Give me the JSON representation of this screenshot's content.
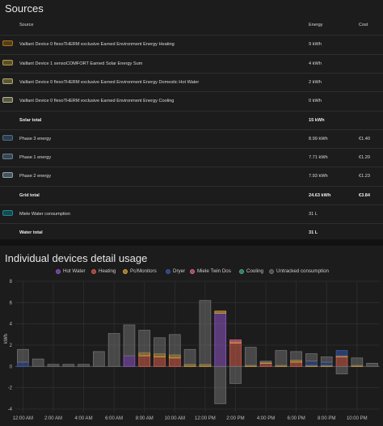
{
  "sources": {
    "title": "Sources",
    "headers": {
      "source": "Source",
      "energy": "Energy",
      "cost": "Cost"
    },
    "rows": [
      {
        "type": "item",
        "label": "Vaillant Device 0 flexoTHERM exclusive Earned Environment Energy Heating",
        "energy": "9 kWh",
        "cost": "",
        "color": "#a8741a"
      },
      {
        "type": "item",
        "label": "Vaillant Device 1 sensoCOMFORT Earned Solar Energy Sum",
        "energy": "4 kWh",
        "cost": "",
        "color": "#b89a40"
      },
      {
        "type": "item",
        "label": "Vaillant Device 0 flexoTHERM exclusive Earned Environment Energy Domestic Hot Water",
        "energy": "2 kWh",
        "cost": "",
        "color": "#b5ad68"
      },
      {
        "type": "item",
        "label": "Vaillant Device 0 flexoTHERM exclusive Earned Environment Energy Cooling",
        "energy": "0 kWh",
        "cost": "",
        "color": "#b7b486"
      },
      {
        "type": "total",
        "label": "Solar total",
        "energy": "15 kWh",
        "cost": ""
      },
      {
        "type": "item",
        "label": "Phase 3 energy",
        "energy": "8.99 kWh",
        "cost": "€1.40",
        "color": "#4b6e92"
      },
      {
        "type": "item",
        "label": "Phase 1 energy",
        "energy": "7.71 kWh",
        "cost": "€1.20",
        "color": "#62849f"
      },
      {
        "type": "item",
        "label": "Phase 2 energy",
        "energy": "7.93 kWh",
        "cost": "€1.23",
        "color": "#8aa8b5"
      },
      {
        "type": "total",
        "label": "Grid total",
        "energy": "24.63 kWh",
        "cost": "€3.84"
      },
      {
        "type": "item",
        "label": "Miele Water consumption",
        "energy": "31 L",
        "cost": "",
        "color": "#1a8a95"
      },
      {
        "type": "total",
        "label": "Water total",
        "energy": "31 L",
        "cost": ""
      }
    ]
  },
  "usage": {
    "title": "Individual devices detail usage",
    "legend": [
      {
        "label": "Hot Water",
        "color": "#8e56c2"
      },
      {
        "label": "Heating",
        "color": "#d35e4c"
      },
      {
        "label": "Pc/Monitors",
        "color": "#d6a53f"
      },
      {
        "label": "Dryer",
        "color": "#3c5aa8"
      },
      {
        "label": "Miele Twin Dos",
        "color": "#d8688a"
      },
      {
        "label": "Cooling",
        "color": "#4aa58e"
      },
      {
        "label": "Untracked consumption",
        "color": "#6e6e6e"
      }
    ]
  },
  "chart_data": {
    "type": "bar",
    "stacked": true,
    "ylabel": "kWh",
    "ylim": [
      -4,
      8
    ],
    "yticks": [
      -4,
      -2,
      0,
      2,
      4,
      6,
      8
    ],
    "grid": true,
    "legend_position": "top",
    "x_tick_labels": [
      "12:00 AM",
      "2:00 AM",
      "4:00 AM",
      "6:00 AM",
      "8:00 AM",
      "10:00 AM",
      "12:00 PM",
      "2:00 PM",
      "4:00 PM",
      "6:00 PM",
      "8:00 PM",
      "10:00 PM"
    ],
    "categories": [
      "0",
      "1",
      "2",
      "3",
      "4",
      "5",
      "6",
      "7",
      "8",
      "9",
      "10",
      "11",
      "12",
      "13",
      "14",
      "15",
      "16",
      "17",
      "18",
      "19",
      "20",
      "21",
      "22",
      "23"
    ],
    "series": [
      {
        "name": "Hot Water",
        "color": "#8e56c2",
        "values": [
          0,
          0,
          0,
          0,
          0,
          0,
          0,
          1,
          0,
          0,
          0,
          0,
          0,
          5,
          0,
          0,
          0,
          0,
          0,
          0,
          0,
          0,
          0,
          0
        ]
      },
      {
        "name": "Heating",
        "color": "#d35e4c",
        "values": [
          0,
          0,
          0,
          0,
          0,
          0,
          0,
          0,
          1,
          0.9,
          0.8,
          0,
          0,
          0,
          2.2,
          0,
          0.3,
          0,
          0.4,
          0,
          0,
          0.9,
          0,
          0
        ]
      },
      {
        "name": "Pc/Monitors",
        "color": "#d6a53f",
        "values": [
          0,
          0,
          0,
          0,
          0,
          0,
          0,
          0,
          0.3,
          0.3,
          0.3,
          0.2,
          0.2,
          0.2,
          0.1,
          0.1,
          0.1,
          0.1,
          0.2,
          0.1,
          0.1,
          0.1,
          0.1,
          0
        ]
      },
      {
        "name": "Dryer",
        "color": "#3c5aa8",
        "values": [
          0.4,
          0,
          0,
          0,
          0,
          0,
          0,
          0,
          0,
          0,
          0,
          0,
          0,
          0,
          0,
          0,
          0,
          0,
          0,
          0.4,
          0.3,
          0.5,
          0,
          0
        ]
      },
      {
        "name": "Miele Twin Dos",
        "color": "#d8688a",
        "values": [
          0,
          0,
          0,
          0,
          0,
          0,
          0,
          0,
          0,
          0,
          0,
          0,
          0,
          0,
          0.2,
          0,
          0,
          0,
          0,
          0,
          0,
          0,
          0,
          0
        ]
      },
      {
        "name": "Cooling",
        "color": "#4aa58e",
        "values": [
          0,
          0,
          0,
          0,
          0,
          0,
          0,
          0,
          0,
          0,
          0,
          0,
          0,
          0,
          0,
          0,
          0,
          0,
          0,
          0,
          0,
          0,
          0,
          0
        ]
      },
      {
        "name": "Untracked consumption",
        "color": "#6e6e6e",
        "values": [
          1.2,
          0.7,
          0.2,
          0.2,
          0.2,
          1.4,
          3.1,
          2.9,
          2.1,
          1.5,
          1.9,
          1.4,
          6.0,
          -3.5,
          -1.6,
          1.7,
          0.1,
          1.4,
          0.8,
          0.7,
          0.5,
          -0.7,
          0.7,
          0.3
        ]
      }
    ]
  }
}
